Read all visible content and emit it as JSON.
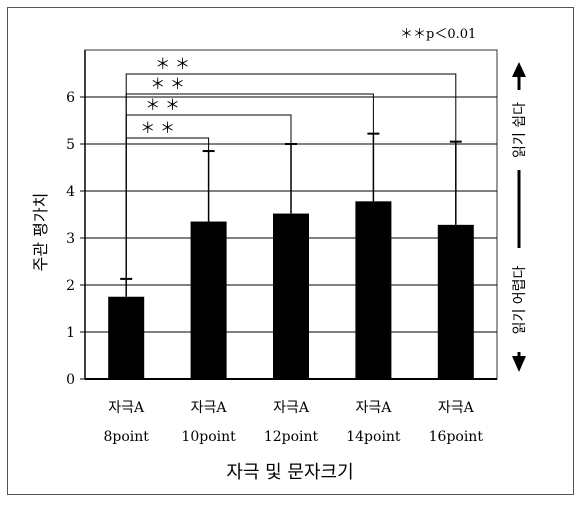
{
  "chart_data": {
    "type": "bar",
    "categories": [
      {
        "line1": "자극A",
        "line2": "8point"
      },
      {
        "line1": "자극A",
        "line2": "10point"
      },
      {
        "line1": "자극A",
        "line2": "12point"
      },
      {
        "line1": "자극A",
        "line2": "14point"
      },
      {
        "line1": "자극A",
        "line2": "16point"
      }
    ],
    "values": [
      1.75,
      3.35,
      3.52,
      3.78,
      3.28
    ],
    "error_upper": [
      2.13,
      4.85,
      5.0,
      5.22,
      5.05
    ],
    "xlabel": "자극 및 문자크기",
    "ylabel": "주관 평가치",
    "ylim": [
      0,
      7
    ],
    "yticks": [
      "0",
      "1",
      "2",
      "3",
      "4",
      "5",
      "6"
    ],
    "grid": true,
    "significance_note": "＊＊p＜0.01",
    "significance_brackets": [
      {
        "from": 0,
        "to": 1,
        "label": "＊ ＊"
      },
      {
        "from": 0,
        "to": 2,
        "label": "＊ ＊"
      },
      {
        "from": 0,
        "to": 3,
        "label": "＊ ＊"
      },
      {
        "from": 0,
        "to": 4,
        "label": "＊ ＊"
      }
    ],
    "right_arrow_labels": {
      "top": "읽기 쉽다",
      "bottom": "읽기 어렵다"
    },
    "bar_color": "#000000"
  }
}
